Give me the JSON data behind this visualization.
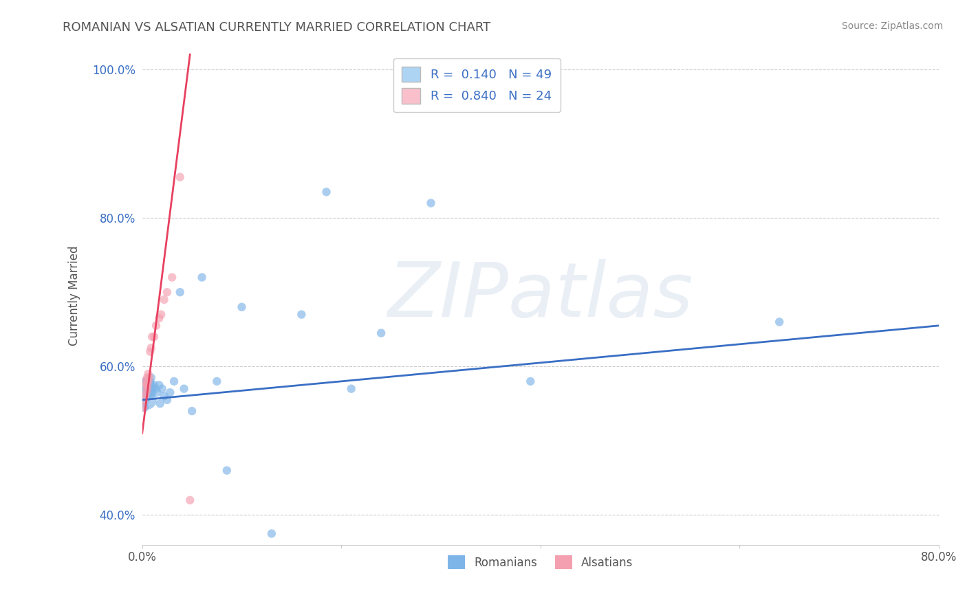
{
  "title": "ROMANIAN VS ALSATIAN CURRENTLY MARRIED CORRELATION CHART",
  "source": "Source: ZipAtlas.com",
  "ylabel": "Currently Married",
  "watermark": "ZIPatlas",
  "xlim": [
    0.0,
    0.8
  ],
  "ylim": [
    0.36,
    1.03
  ],
  "xticks": [
    0.0,
    0.2,
    0.4,
    0.6,
    0.8
  ],
  "xticklabels": [
    "0.0%",
    "",
    "",
    "",
    "80.0%"
  ],
  "yticks": [
    0.4,
    0.6,
    0.8,
    1.0
  ],
  "yticklabels": [
    "40.0%",
    "60.0%",
    "80.0%",
    "100.0%"
  ],
  "romanian_R": 0.14,
  "romanian_N": 49,
  "alsatian_R": 0.84,
  "alsatian_N": 24,
  "romanian_color": "#7EB5E8",
  "alsatian_color": "#F4A0B0",
  "romanian_line_color": "#3A6FC4",
  "alsatian_line_color": "#E84060",
  "legend_box_romanian": "#AED4F4",
  "legend_box_alsatian": "#F9C0CC",
  "background_color": "#ffffff",
  "grid_color": "#cccccc",
  "title_color": "#555555",
  "legend_text_color": "#3A6FC4",
  "romanian_x": [
    0.001,
    0.002,
    0.002,
    0.003,
    0.003,
    0.003,
    0.004,
    0.004,
    0.004,
    0.005,
    0.005,
    0.005,
    0.005,
    0.006,
    0.006,
    0.006,
    0.007,
    0.007,
    0.008,
    0.008,
    0.009,
    0.009,
    0.01,
    0.01,
    0.012,
    0.013,
    0.015,
    0.017,
    0.018,
    0.02,
    0.022,
    0.025,
    0.028,
    0.032,
    0.038,
    0.042,
    0.05,
    0.06,
    0.075,
    0.085,
    0.1,
    0.13,
    0.16,
    0.185,
    0.21,
    0.24,
    0.29,
    0.39,
    0.64
  ],
  "romanian_y": [
    0.555,
    0.575,
    0.545,
    0.565,
    0.57,
    0.58,
    0.56,
    0.57,
    0.56,
    0.555,
    0.565,
    0.575,
    0.58,
    0.565,
    0.575,
    0.57,
    0.58,
    0.565,
    0.57,
    0.58,
    0.575,
    0.585,
    0.57,
    0.565,
    0.575,
    0.57,
    0.565,
    0.575,
    0.55,
    0.57,
    0.56,
    0.555,
    0.565,
    0.58,
    0.7,
    0.57,
    0.54,
    0.72,
    0.58,
    0.46,
    0.68,
    0.375,
    0.67,
    0.835,
    0.57,
    0.645,
    0.82,
    0.58,
    0.66
  ],
  "romanian_sizes": [
    180,
    120,
    100,
    150,
    80,
    80,
    100,
    80,
    80,
    400,
    300,
    200,
    120,
    100,
    80,
    80,
    80,
    80,
    80,
    80,
    80,
    80,
    80,
    80,
    80,
    80,
    80,
    80,
    80,
    80,
    80,
    80,
    80,
    80,
    80,
    80,
    80,
    80,
    80,
    80,
    80,
    80,
    80,
    80,
    80,
    80,
    80,
    80,
    80
  ],
  "alsatian_x": [
    0.001,
    0.002,
    0.003,
    0.003,
    0.004,
    0.004,
    0.005,
    0.005,
    0.005,
    0.006,
    0.006,
    0.007,
    0.008,
    0.009,
    0.01,
    0.012,
    0.014,
    0.017,
    0.019,
    0.022,
    0.025,
    0.03,
    0.038,
    0.048
  ],
  "alsatian_y": [
    0.545,
    0.555,
    0.56,
    0.58,
    0.565,
    0.575,
    0.575,
    0.57,
    0.585,
    0.58,
    0.59,
    0.585,
    0.62,
    0.625,
    0.64,
    0.64,
    0.655,
    0.665,
    0.67,
    0.69,
    0.7,
    0.72,
    0.855,
    0.42
  ],
  "alsatian_sizes": [
    80,
    80,
    80,
    80,
    80,
    80,
    80,
    80,
    80,
    80,
    80,
    80,
    80,
    80,
    80,
    80,
    80,
    80,
    80,
    80,
    80,
    80,
    80,
    80
  ],
  "rom_line_x0": 0.0,
  "rom_line_x1": 0.8,
  "rom_line_y0": 0.555,
  "rom_line_y1": 0.655,
  "als_line_x0": 0.0,
  "als_line_x1": 0.048,
  "als_line_y0": 0.51,
  "als_line_y1": 1.02
}
